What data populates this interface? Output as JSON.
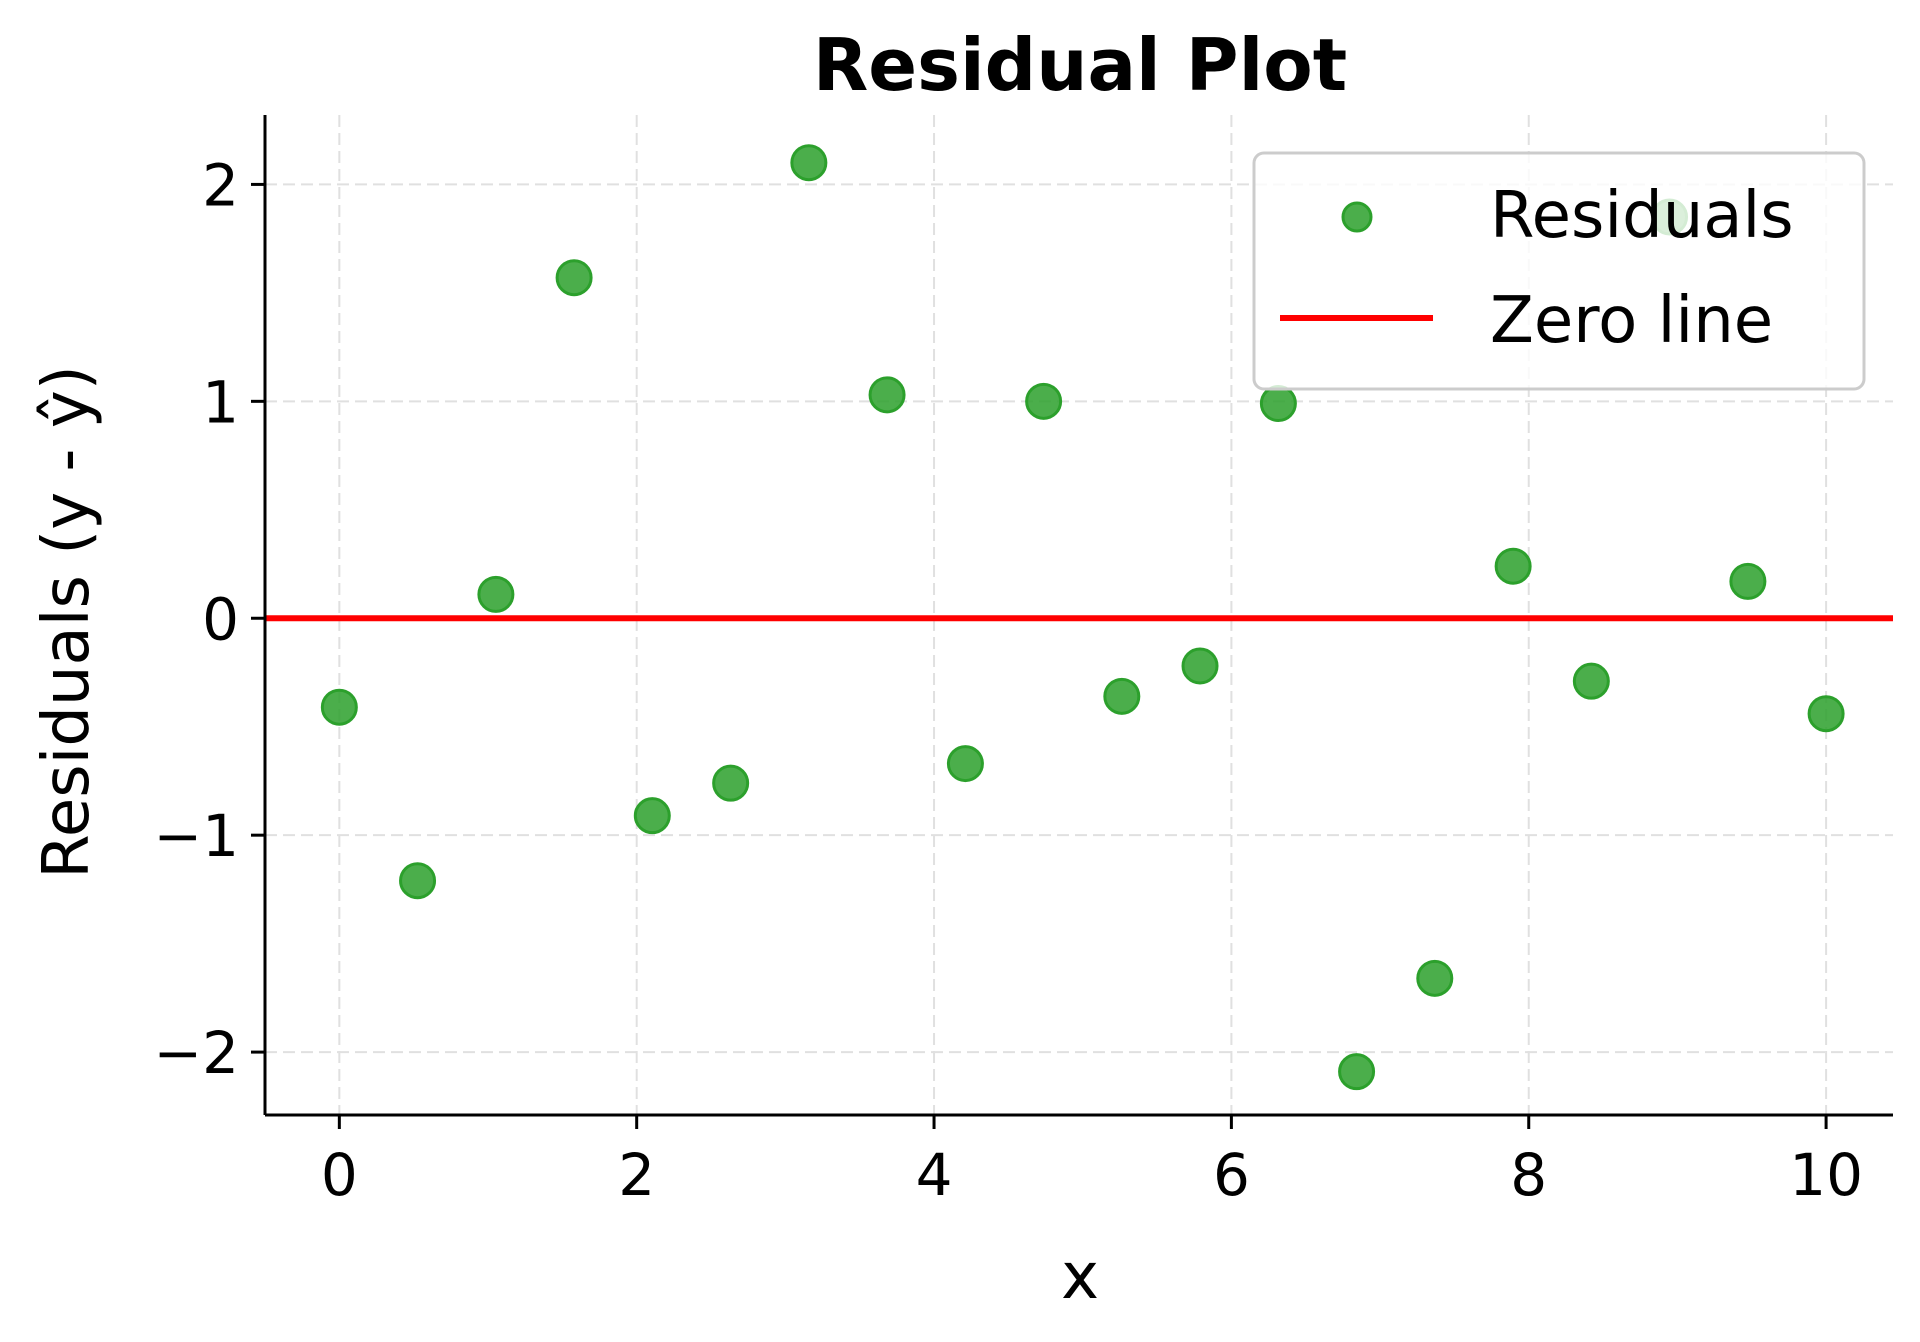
{
  "chart_data": {
    "type": "scatter",
    "title": "Residual Plot",
    "xlabel": "x",
    "ylabel": "Residuals (y - ŷ)",
    "xlim": [
      -0.5,
      10.45
    ],
    "ylim": [
      -2.29,
      2.32
    ],
    "xticks": [
      0,
      2,
      4,
      6,
      8,
      10
    ],
    "xtick_labels": [
      "0",
      "2",
      "4",
      "6",
      "8",
      "10"
    ],
    "yticks": [
      -2,
      -1,
      0,
      1,
      2
    ],
    "ytick_labels": [
      "−2",
      "−1",
      "0",
      "1",
      "2"
    ],
    "grid": true,
    "legend_position": "upper right",
    "series": [
      {
        "name": "Residuals",
        "type": "scatter",
        "color": "#2ca02c",
        "x": [
          0.0,
          0.526,
          1.053,
          1.579,
          2.105,
          2.632,
          3.158,
          3.684,
          4.211,
          4.737,
          5.263,
          5.789,
          6.316,
          6.842,
          7.368,
          7.895,
          8.421,
          8.947,
          9.474,
          10.0
        ],
        "y": [
          -0.41,
          -1.21,
          0.11,
          1.57,
          -0.91,
          -0.76,
          2.1,
          1.03,
          -0.67,
          1.0,
          -0.36,
          -0.22,
          0.99,
          -2.09,
          -1.66,
          0.24,
          -0.29,
          1.85,
          0.17,
          -0.44
        ]
      },
      {
        "name": "Zero line",
        "type": "hline",
        "color": "#ff0000",
        "y": 0
      }
    ]
  },
  "legend": {
    "items": [
      {
        "label": "Residuals"
      },
      {
        "label": "Zero line"
      }
    ]
  }
}
